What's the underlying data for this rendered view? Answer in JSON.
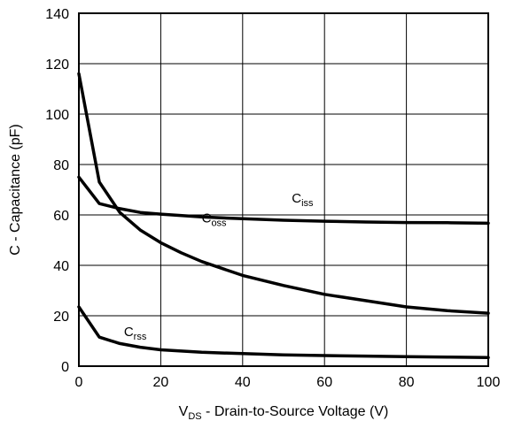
{
  "chart_data": {
    "type": "line",
    "title": "",
    "xlabel": {
      "main": "V",
      "sub": "DS",
      "rest": " - Drain-to-Source Voltage (V)"
    },
    "ylabel": "C - Capacitance (pF)",
    "xlim": [
      0,
      100
    ],
    "ylim": [
      0,
      140
    ],
    "xticks": [
      0,
      20,
      40,
      60,
      80,
      100
    ],
    "yticks": [
      0,
      20,
      40,
      60,
      80,
      100,
      120,
      140
    ],
    "grid": true,
    "colors": {
      "line": "#000000",
      "grid": "#000000"
    },
    "series": [
      {
        "name": "Ciss",
        "label": {
          "main": "C",
          "sub": "iss",
          "x": 52,
          "y": 65
        },
        "x": [
          0,
          5,
          10,
          15,
          20,
          30,
          40,
          50,
          60,
          70,
          80,
          90,
          100
        ],
        "y": [
          75,
          64.5,
          62.5,
          61,
          60.3,
          59.2,
          58.5,
          57.9,
          57.5,
          57.2,
          57,
          56.9,
          56.7
        ]
      },
      {
        "name": "Coss",
        "label": {
          "main": "C",
          "sub": "oss",
          "x": 30,
          "y": 57
        },
        "x": [
          0,
          5,
          10,
          15,
          20,
          25,
          30,
          40,
          50,
          60,
          70,
          80,
          90,
          100
        ],
        "y": [
          116,
          73,
          61,
          54,
          49,
          45,
          41.5,
          36,
          32,
          28.5,
          26,
          23.5,
          22,
          21
        ]
      },
      {
        "name": "Crss",
        "label": {
          "main": "C",
          "sub": "rss",
          "x": 11,
          "y": 12
        },
        "x": [
          0,
          5,
          10,
          15,
          20,
          30,
          40,
          50,
          60,
          70,
          80,
          90,
          100
        ],
        "y": [
          23.5,
          11.5,
          9,
          7.5,
          6.5,
          5.5,
          5,
          4.5,
          4.2,
          4,
          3.8,
          3.6,
          3.4
        ]
      }
    ]
  }
}
